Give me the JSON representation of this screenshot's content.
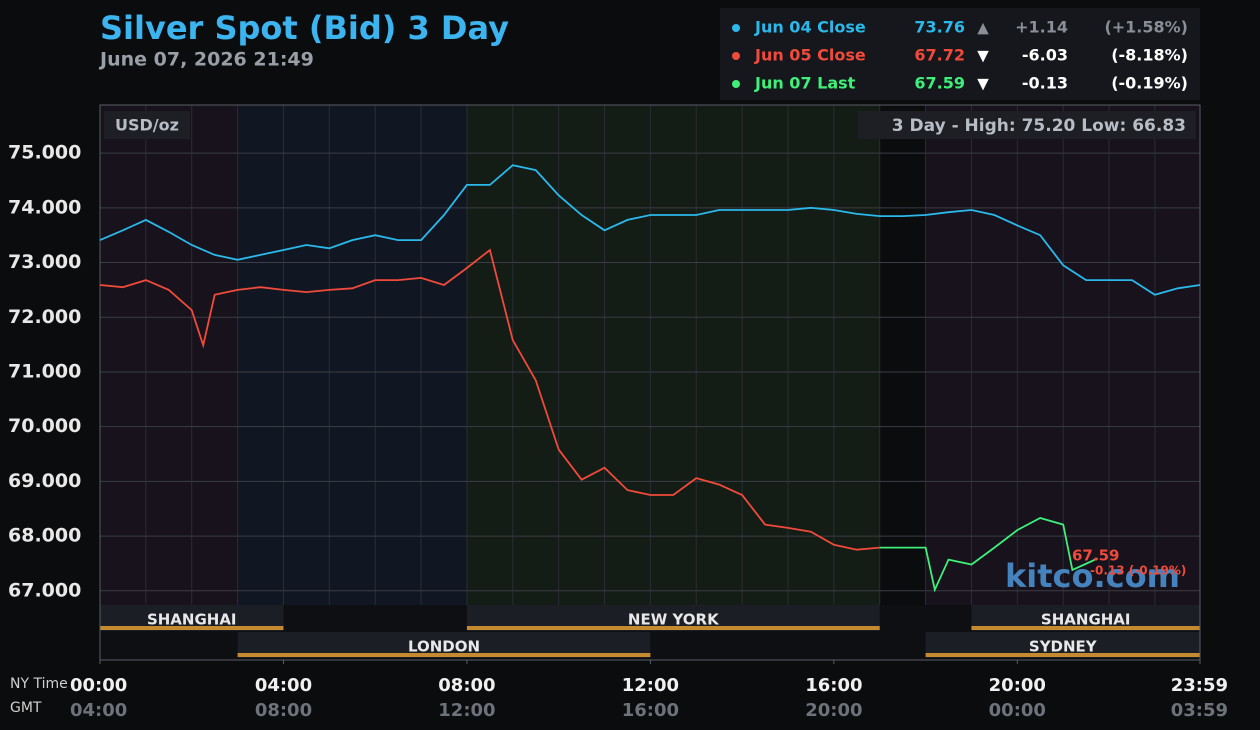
{
  "chart_data": {
    "type": "line",
    "title": "Silver Spot (Bid) 3 Day",
    "subtitle": "June 07, 2026 21:49",
    "unit_label": "USD/oz",
    "summary": "3 Day - High: 75.20  Low: 66.83",
    "watermark": "kitco.com",
    "annotations": [
      "67.59",
      "-0.13 (-0.19%)"
    ],
    "x_label": "NY Time",
    "x2_label": "GMT",
    "xlim": [
      0,
      23.983
    ],
    "xticks": [
      {
        "value": 0,
        "label": "00:00"
      },
      {
        "value": 4,
        "label": "04:00"
      },
      {
        "value": 8,
        "label": "08:00"
      },
      {
        "value": 12,
        "label": "12:00"
      },
      {
        "value": 16,
        "label": "16:00"
      },
      {
        "value": 20,
        "label": "20:00"
      },
      {
        "value": 23.983,
        "label": "23:59"
      }
    ],
    "x2ticks": [
      {
        "value": 0,
        "label": "04:00"
      },
      {
        "value": 4,
        "label": "08:00"
      },
      {
        "value": 8,
        "label": "12:00"
      },
      {
        "value": 12,
        "label": "16:00"
      },
      {
        "value": 16,
        "label": "20:00"
      },
      {
        "value": 20,
        "label": "00:00"
      },
      {
        "value": 23.983,
        "label": "03:59"
      }
    ],
    "ylim": [
      66.74,
      75.88
    ],
    "yticks": [
      {
        "value": 67,
        "label": "67.000"
      },
      {
        "value": 68,
        "label": "68.000"
      },
      {
        "value": 69,
        "label": "69.000"
      },
      {
        "value": 70,
        "label": "70.000"
      },
      {
        "value": 71,
        "label": "71.000"
      },
      {
        "value": 72,
        "label": "72.000"
      },
      {
        "value": 73,
        "label": "73.000"
      },
      {
        "value": 74,
        "label": "74.000"
      },
      {
        "value": 75,
        "label": "75.000"
      }
    ],
    "grid": true,
    "sessions": [
      {
        "name": "SHANGHAI",
        "start": 0,
        "end": 4,
        "row": 1
      },
      {
        "name": "NEW YORK",
        "start": 8,
        "end": 17,
        "row": 1
      },
      {
        "name": "SHANGHAI",
        "start": 19,
        "end": 23.983,
        "row": 1
      },
      {
        "name": "LONDON",
        "start": 3,
        "end": 12,
        "row": 2
      },
      {
        "name": "SYDNEY",
        "start": 18,
        "end": 23.983,
        "row": 2
      }
    ],
    "series": [
      {
        "name": "Jun 04 Close",
        "color": "#2bb8ea",
        "close": 73.76,
        "arrow": "▲",
        "change": "+1.14",
        "change_pct": "(+1.58%)",
        "x": [
          0,
          0.5,
          1,
          1.5,
          2,
          2.5,
          3,
          3.5,
          4,
          4.5,
          5,
          5.5,
          6,
          6.5,
          7,
          7.5,
          8,
          8.5,
          9,
          9.5,
          10,
          10.5,
          11,
          11.5,
          12,
          12.5,
          13,
          13.5,
          14,
          14.5,
          15,
          15.5,
          16,
          16.5,
          17,
          17.5,
          18,
          18.5,
          19,
          19.5,
          20,
          20.5,
          21,
          21.5,
          22,
          22.5,
          23,
          23.5,
          23.983
        ],
        "values": [
          73.41,
          73.59,
          73.78,
          73.56,
          73.32,
          73.14,
          73.05,
          73.14,
          73.23,
          73.32,
          73.26,
          73.41,
          73.5,
          73.41,
          73.41,
          73.87,
          74.42,
          74.42,
          74.78,
          74.69,
          74.23,
          73.87,
          73.59,
          73.78,
          73.87,
          73.87,
          73.87,
          73.96,
          73.96,
          73.96,
          73.96,
          74.0,
          73.96,
          73.89,
          73.85,
          73.85,
          73.87,
          73.92,
          73.96,
          73.87,
          73.68,
          73.5,
          72.95,
          72.68,
          72.68,
          72.68,
          72.41,
          72.53,
          72.59
        ]
      },
      {
        "name": "Jun 05 Close",
        "color": "#f04a3a",
        "close": 67.72,
        "arrow": "▼",
        "change": "-6.03",
        "change_pct": "(-8.18%)",
        "x": [
          0,
          0.5,
          1,
          1.5,
          2,
          2.25,
          2.5,
          3,
          3.5,
          4,
          4.5,
          5,
          5.5,
          6,
          6.5,
          7,
          7.5,
          8,
          8.5,
          9,
          9.5,
          10,
          10.5,
          11,
          11.5,
          12,
          12.5,
          13,
          13.5,
          14,
          14.5,
          15,
          15.5,
          16,
          16.5,
          17
        ],
        "values": [
          72.59,
          72.55,
          72.68,
          72.5,
          72.13,
          71.49,
          72.41,
          72.5,
          72.55,
          72.5,
          72.46,
          72.5,
          72.53,
          72.68,
          72.68,
          72.72,
          72.59,
          72.9,
          73.23,
          71.58,
          70.85,
          69.58,
          69.03,
          69.25,
          68.84,
          68.75,
          68.75,
          69.06,
          68.94,
          68.75,
          68.21,
          68.15,
          68.08,
          67.84,
          67.75,
          67.79
        ]
      },
      {
        "name": "Jun 07 Last",
        "color": "#3ef07a",
        "close": 67.59,
        "arrow": "▼",
        "change": "-0.13",
        "change_pct": "(-0.19%)",
        "x": [
          17,
          18,
          18.2,
          18.5,
          19,
          19.5,
          20,
          20.5,
          21,
          21.2,
          21.75
        ],
        "values": [
          67.79,
          67.79,
          67.02,
          67.57,
          67.48,
          67.79,
          68.11,
          68.33,
          68.21,
          67.38,
          67.59
        ]
      }
    ]
  }
}
